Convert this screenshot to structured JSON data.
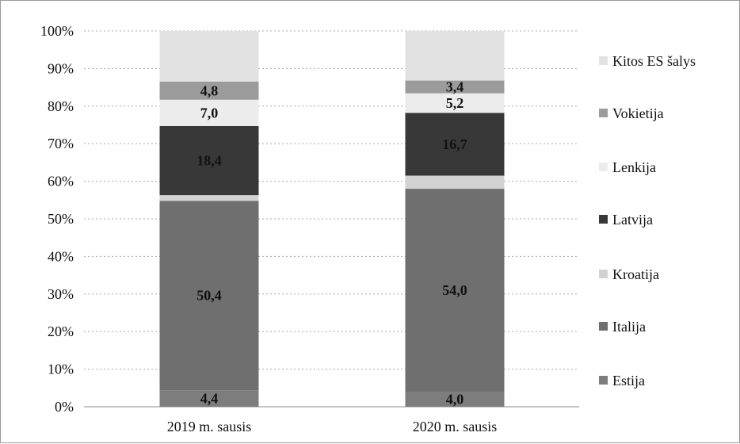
{
  "chart_data": {
    "type": "bar",
    "stacked": true,
    "percent_stacked": true,
    "categories": [
      "2019 m. sausis",
      "2020 m. sausis"
    ],
    "series": [
      {
        "name": "Estija",
        "values": [
          4.4,
          4.0
        ],
        "labels": [
          "4,4",
          "4,0"
        ],
        "color": "#7d7d7d"
      },
      {
        "name": "Italija",
        "values": [
          50.4,
          54.0
        ],
        "labels": [
          "50,4",
          "54,0"
        ],
        "color": "#6f6f6f"
      },
      {
        "name": "Kroatija",
        "values": [
          1.5,
          3.5
        ],
        "labels": [
          null,
          null
        ],
        "color": "#d2d2d2"
      },
      {
        "name": "Latvija",
        "values": [
          18.4,
          16.7
        ],
        "labels": [
          "18,4",
          "16,7"
        ],
        "color": "#383838"
      },
      {
        "name": "Lenkija",
        "values": [
          7.0,
          5.2
        ],
        "labels": [
          "7,0",
          "5,2"
        ],
        "color": "#ececec"
      },
      {
        "name": "Vokietija",
        "values": [
          4.8,
          3.4
        ],
        "labels": [
          "4,8",
          "3,4"
        ],
        "color": "#9b9b9b"
      },
      {
        "name": "Kitos ES šalys",
        "values": [
          13.5,
          13.2
        ],
        "labels": [
          null,
          null
        ],
        "color": "#e2e2e2"
      }
    ],
    "yticks": [
      "0%",
      "10%",
      "20%",
      "30%",
      "40%",
      "50%",
      "60%",
      "70%",
      "80%",
      "90%",
      "100%"
    ],
    "ylim": [
      0,
      100
    ],
    "grid": true,
    "legend_position": "right",
    "title": "",
    "xlabel": "",
    "ylabel": ""
  }
}
